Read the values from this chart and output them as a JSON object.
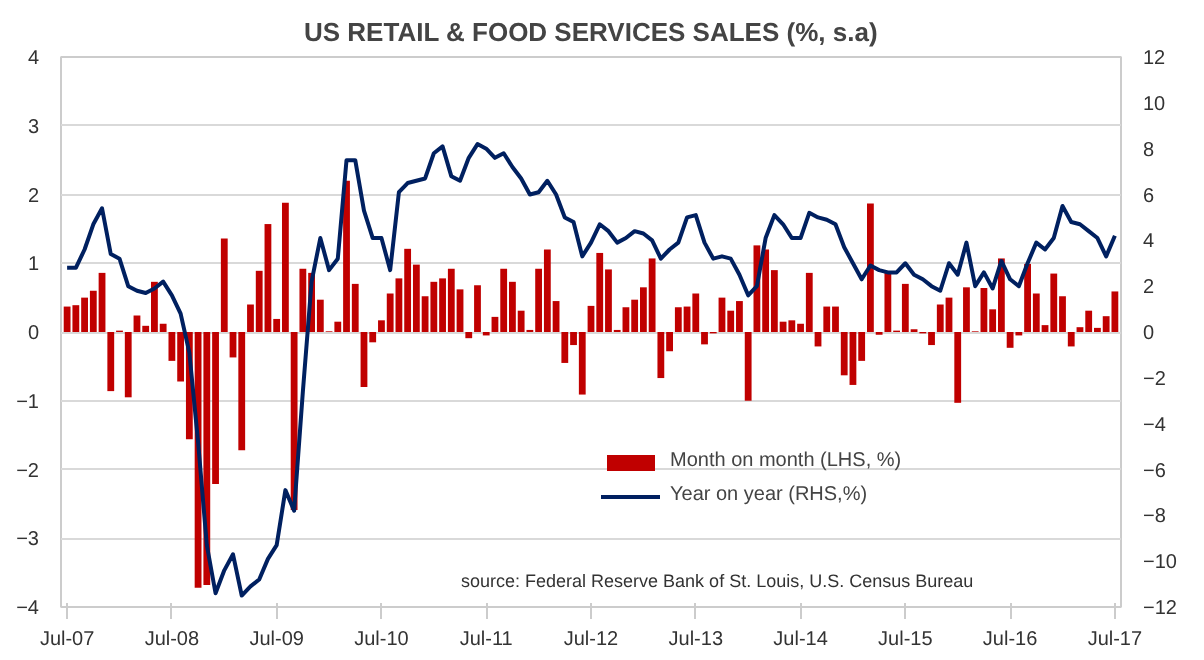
{
  "chart_data": {
    "type": "bar",
    "title": "US RETAIL & FOOD SERVICES SALES (%, s.a)",
    "categories": [
      "Jul-07",
      null,
      null,
      null,
      null,
      null,
      null,
      null,
      null,
      null,
      null,
      null,
      "Jul-08",
      null,
      null,
      null,
      null,
      null,
      null,
      null,
      null,
      null,
      null,
      null,
      "Jul-09",
      null,
      null,
      null,
      null,
      null,
      null,
      null,
      null,
      null,
      null,
      null,
      "Jul-10",
      null,
      null,
      null,
      null,
      null,
      null,
      null,
      null,
      null,
      null,
      null,
      "Jul-11",
      null,
      null,
      null,
      null,
      null,
      null,
      null,
      null,
      null,
      null,
      null,
      "Jul-12",
      null,
      null,
      null,
      null,
      null,
      null,
      null,
      null,
      null,
      null,
      null,
      "Jul-13",
      null,
      null,
      null,
      null,
      null,
      null,
      null,
      null,
      null,
      null,
      null,
      "Jul-14",
      null,
      null,
      null,
      null,
      null,
      null,
      null,
      null,
      null,
      null,
      null,
      "Jul-15",
      null,
      null,
      null,
      null,
      null,
      null,
      null,
      null,
      null,
      null,
      null,
      "Jul-16",
      null,
      null,
      null,
      null,
      null,
      null,
      null,
      null,
      null,
      null,
      null,
      "Jul-17"
    ],
    "series": [
      {
        "name": "Month on month (LHS, %)",
        "color": "#c00000",
        "values": [
          0.37,
          0.39,
          0.5,
          0.6,
          0.86,
          -0.86,
          0.02,
          -0.95,
          0.24,
          0.09,
          0.73,
          0.12,
          -0.42,
          -0.72,
          -1.56,
          -3.72,
          -3.68,
          -2.21,
          1.36,
          -0.37,
          -1.72,
          0.4,
          0.89,
          1.57,
          0.19,
          1.88,
          -2.59,
          0.92,
          0.86,
          0.47,
          0.01,
          0.15,
          2.2,
          0.7,
          -0.8,
          -0.15,
          0.17,
          0.56,
          0.78,
          1.21,
          0.98,
          0.52,
          0.73,
          0.78,
          0.92,
          0.62,
          -0.09,
          0.68,
          -0.05,
          0.22,
          0.92,
          0.73,
          0.31,
          0.03,
          0.92,
          1.2,
          0.45,
          -0.45,
          -0.19,
          -0.91,
          0.38,
          1.15,
          0.91,
          0.03,
          0.36,
          0.47,
          0.65,
          1.07,
          -0.67,
          -0.28,
          0.36,
          0.37,
          0.56,
          -0.18,
          -0.02,
          0.5,
          0.31,
          0.45,
          -1.0,
          1.26,
          1.2,
          0.9,
          0.15,
          0.17,
          0.12,
          0.86,
          -0.21,
          0.37,
          0.37,
          -0.63,
          -0.77,
          -0.42,
          1.87,
          -0.04,
          0.87,
          0.02,
          0.7,
          0.04,
          -0.02,
          -0.19,
          0.4,
          0.5,
          -1.03,
          0.65,
          0.01,
          0.64,
          0.33,
          1.07,
          -0.23,
          -0.05,
          0.99,
          0.56,
          0.1,
          0.85,
          0.52,
          -0.21,
          0.07,
          0.31,
          0.06,
          0.23,
          0.59
        ]
      },
      {
        "name": "Year on year (RHS,%)",
        "type": "line",
        "axis": "y2",
        "color": "#002060",
        "values": [
          2.8,
          2.8,
          3.6,
          4.7,
          5.4,
          3.4,
          3.2,
          2.0,
          1.8,
          1.7,
          1.9,
          2.2,
          1.6,
          0.8,
          -0.9,
          -4.8,
          -9.3,
          -11.4,
          -10.4,
          -9.7,
          -11.5,
          -11.1,
          -10.8,
          -9.9,
          -9.3,
          -6.9,
          -7.8,
          -2.6,
          2.2,
          4.1,
          2.7,
          3.2,
          7.5,
          7.5,
          5.3,
          4.1,
          4.1,
          2.7,
          6.1,
          6.5,
          6.6,
          6.7,
          7.8,
          8.1,
          6.8,
          6.6,
          7.6,
          8.2,
          8.0,
          7.6,
          7.8,
          7.2,
          6.7,
          6.0,
          6.1,
          6.6,
          6.0,
          5.0,
          4.8,
          3.3,
          3.9,
          4.7,
          4.4,
          3.9,
          4.1,
          4.4,
          4.3,
          4.0,
          3.2,
          3.6,
          3.9,
          5.0,
          5.1,
          3.9,
          3.2,
          3.3,
          3.2,
          2.5,
          1.6,
          2.0,
          4.1,
          5.1,
          4.7,
          4.1,
          4.1,
          5.2,
          5.0,
          4.9,
          4.7,
          3.7,
          3.0,
          2.3,
          2.9,
          2.7,
          2.6,
          2.6,
          3.0,
          2.5,
          2.3,
          2.0,
          1.8,
          3.0,
          2.5,
          3.9,
          2.0,
          2.6,
          1.9,
          3.1,
          2.3,
          2.0,
          3.0,
          3.9,
          3.6,
          4.1,
          5.5,
          4.8,
          4.7,
          4.4,
          4.1,
          3.3,
          4.2
        ]
      }
    ],
    "ylim": [
      -4,
      4
    ],
    "yticks": [
      -4,
      -3,
      -2,
      -1,
      0,
      1,
      2,
      3,
      4
    ],
    "y2lim": [
      -12,
      12
    ],
    "y2ticks": [
      -12,
      -10,
      -8,
      -6,
      -4,
      -2,
      0,
      2,
      4,
      6,
      8,
      10,
      12
    ],
    "grid": "y",
    "legend": "bottom",
    "annotations": [
      "source: Federal Reserve Bank of St. Louis, U.S. Census Bureau"
    ]
  }
}
